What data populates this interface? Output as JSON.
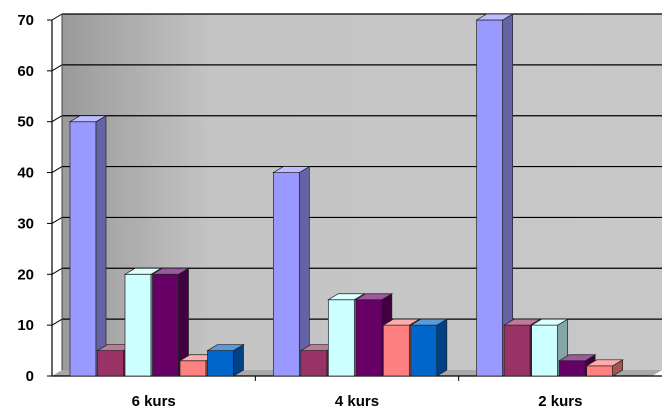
{
  "chart_data": {
    "type": "bar",
    "categories": [
      "6 kurs",
      "4 kurs",
      "2 kurs"
    ],
    "series": [
      {
        "values": [
          50,
          40,
          70
        ],
        "color": "#9999FF"
      },
      {
        "values": [
          5,
          5,
          10
        ],
        "color": "#993366"
      },
      {
        "values": [
          20,
          15,
          10
        ],
        "color": "#CCFFFF"
      },
      {
        "values": [
          20,
          15,
          3
        ],
        "color": "#660066"
      },
      {
        "values": [
          3,
          10,
          2
        ],
        "color": "#FF8080"
      },
      {
        "values": [
          5,
          10,
          null
        ],
        "color": "#0066CC"
      }
    ],
    "yticks": [
      0,
      10,
      20,
      30,
      40,
      50,
      60,
      70
    ],
    "ylim": [
      0,
      70
    ],
    "grid": true,
    "legend": "none",
    "title": "",
    "xlabel": "",
    "ylabel": "",
    "plot_background": "#C0C0C0"
  }
}
